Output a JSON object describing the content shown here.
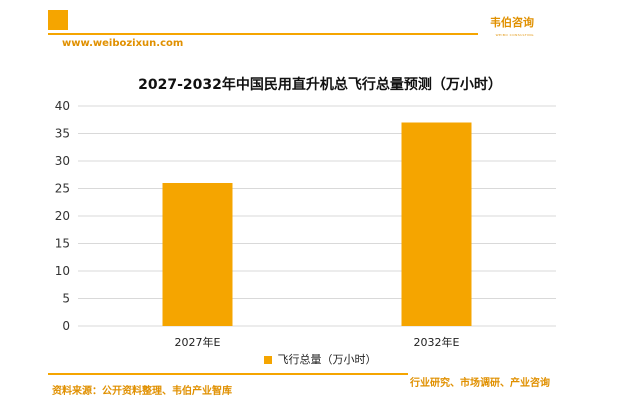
{
  "header": {
    "brand": "韦伯咨询",
    "brand_sub": "WEIBO CONSULTING",
    "url": "www.weibozixun.com"
  },
  "chart_data": {
    "type": "bar",
    "title": "2027-2032年中国民用直升机总飞行总量预测（万小时）",
    "categories": [
      "2027年E",
      "2032年E"
    ],
    "series": [
      {
        "name": "飞行总量（万小时）",
        "values": [
          26,
          37
        ]
      }
    ],
    "ylim": [
      0,
      40
    ],
    "yticks": [
      0,
      5,
      10,
      15,
      20,
      25,
      30,
      35,
      40
    ],
    "grid": true,
    "legend": "bottom",
    "color": "#f5a500"
  },
  "footer": {
    "source": "资料来源：公开资料整理、韦伯产业智库",
    "tagline": "行业研究、市场调研、产业咨询"
  }
}
